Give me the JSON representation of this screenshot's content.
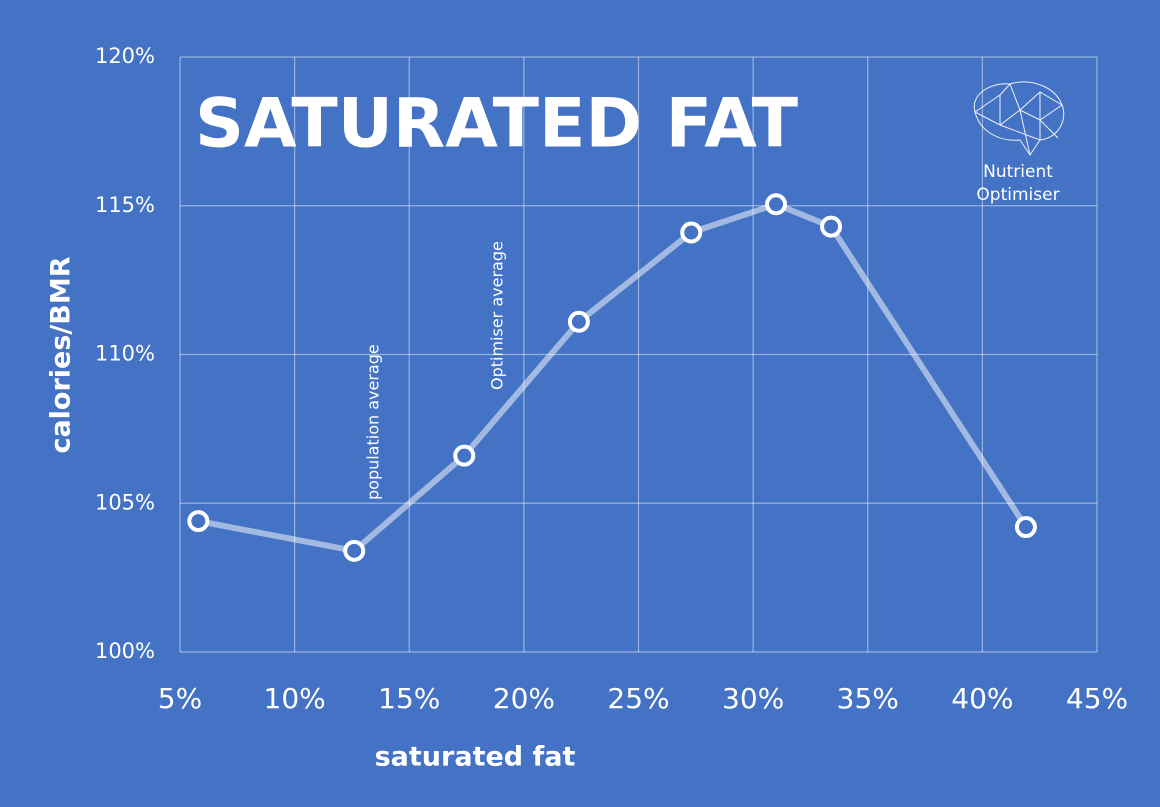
{
  "chart_data": {
    "type": "line",
    "title": "SATURATED FAT",
    "x_label": "saturated fat",
    "y_label": "calories/BMR",
    "series": [
      {
        "name": "calories/BMR",
        "color": "#ffffff",
        "x": [
          5.8,
          12.6,
          17.4,
          22.4,
          27.3,
          31.0,
          33.4,
          41.9
        ],
        "values": [
          104.4,
          103.4,
          106.6,
          111.1,
          114.1,
          115.05,
          114.3,
          104.2
        ]
      }
    ],
    "xlim": [
      5,
      45
    ],
    "xticks": [
      {
        "value": 5,
        "label": "5%"
      },
      {
        "value": 10,
        "label": "10%"
      },
      {
        "value": 15,
        "label": "15%"
      },
      {
        "value": 20,
        "label": "20%"
      },
      {
        "value": 25,
        "label": "25%"
      },
      {
        "value": 30,
        "label": "30%"
      },
      {
        "value": 35,
        "label": "35%"
      },
      {
        "value": 40,
        "label": "40%"
      },
      {
        "value": 45,
        "label": "45%"
      }
    ],
    "ylim": [
      100,
      120
    ],
    "yticks": [
      {
        "value": 100,
        "label": "100%"
      },
      {
        "value": 105,
        "label": "105%"
      },
      {
        "value": 110,
        "label": "110%"
      },
      {
        "value": 115,
        "label": "115%"
      },
      {
        "value": 120,
        "label": "120%"
      }
    ],
    "grid": true,
    "annotations": [
      "population average",
      "Optimiser average"
    ],
    "logo": [
      "Nutrient",
      "Optimiser"
    ]
  }
}
